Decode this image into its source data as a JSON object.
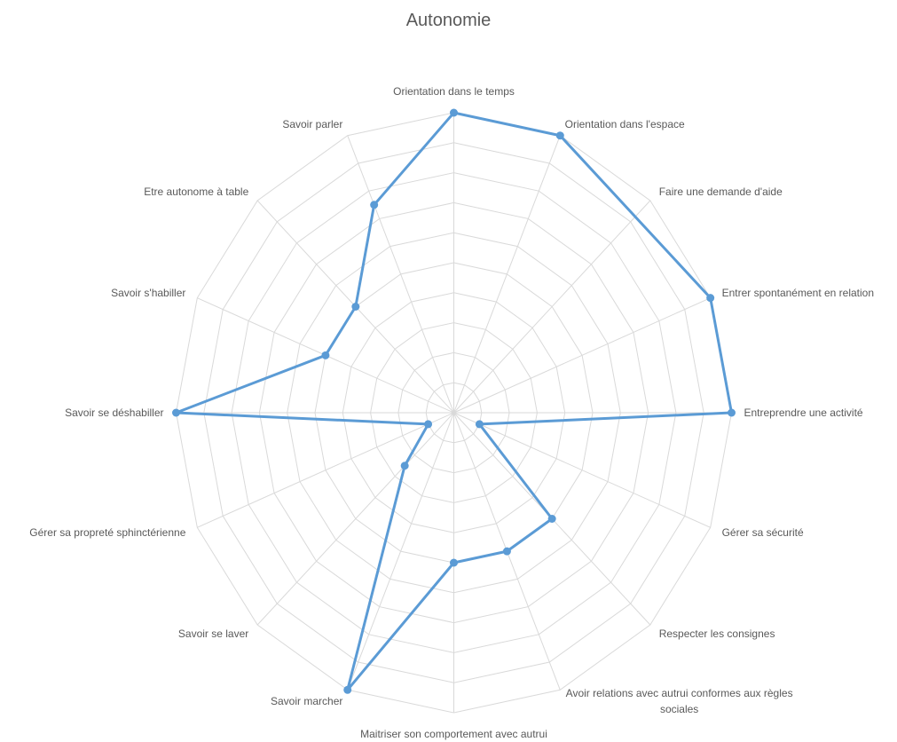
{
  "chart_data": {
    "type": "radar",
    "title": "Autonomie",
    "categories": [
      "Orientation dans le temps",
      "Orientation dans l'espace",
      "Faire une demande d'aide",
      "Entrer spontanément en relation",
      "Entreprendre une activité",
      "Gérer sa sécurité",
      "Respecter les consignes",
      "Avoir relations avec autrui conformes aux règles sociales",
      "Maitriser son comportement avec autrui",
      "Savoir marcher",
      "Savoir se laver",
      "Gérer sa propreté sphinctérienne",
      "Savoir se déshabiller",
      "Savoir s'habiller",
      "Etre autonome à table",
      "Savoir parler"
    ],
    "values": [
      10,
      10,
      null,
      10,
      10,
      1,
      5,
      5,
      5,
      10,
      2.5,
      1,
      10,
      5,
      5,
      7.5
    ],
    "color": "#5b9bd5",
    "ylim": [
      0,
      10
    ],
    "yticks": [
      0,
      1,
      2,
      3,
      4,
      5,
      6,
      7,
      8,
      9,
      10
    ],
    "grid": true
  }
}
